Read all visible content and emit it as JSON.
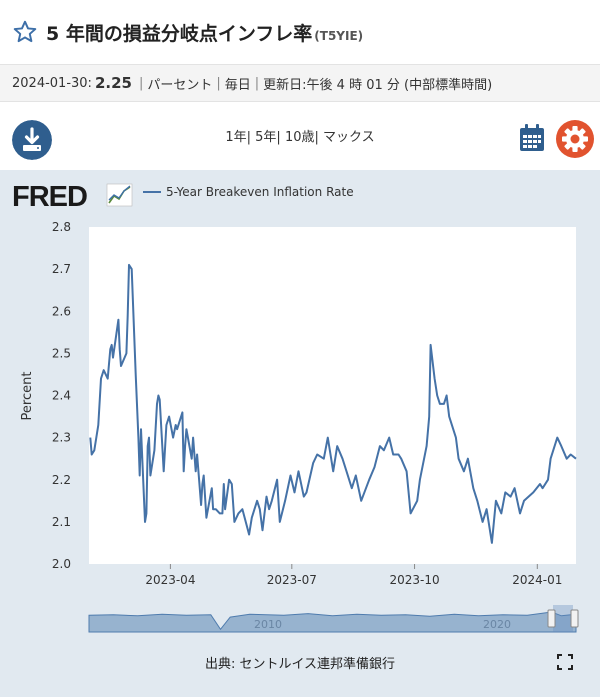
{
  "header": {
    "title": "5 年間の損益分岐点インフレ率",
    "code": "(T5YIE)"
  },
  "meta": {
    "date": "2024-01-30:",
    "value": "2.25",
    "units": "パーセント",
    "frequency": "毎日",
    "updated": "更新日:午後 4 時 01 分 (中部標準時間)"
  },
  "toolbar": {
    "range_1y": "1年",
    "range_5y": "5年",
    "range_10y": "10歳",
    "range_max": "マックス"
  },
  "chart": {
    "brand": "FRED",
    "source": "出典: セントルイス連邦準備銀行",
    "accent_color": "#4572a7",
    "panel_color": "#e1e9f0",
    "navigator_labels": [
      "2010",
      "2020"
    ]
  },
  "chart_data": {
    "type": "line",
    "series": [
      {
        "name": "5-Year Breakeven Inflation Rate",
        "color": "#4572a7",
        "points": [
          [
            "2023-01-31",
            2.3
          ],
          [
            "2023-02-01",
            2.26
          ],
          [
            "2023-02-03",
            2.27
          ],
          [
            "2023-02-06",
            2.33
          ],
          [
            "2023-02-08",
            2.44
          ],
          [
            "2023-02-10",
            2.46
          ],
          [
            "2023-02-13",
            2.44
          ],
          [
            "2023-02-15",
            2.51
          ],
          [
            "2023-02-16",
            2.52
          ],
          [
            "2023-02-17",
            2.49
          ],
          [
            "2023-02-21",
            2.58
          ],
          [
            "2023-02-22",
            2.51
          ],
          [
            "2023-02-23",
            2.47
          ],
          [
            "2023-02-27",
            2.5
          ],
          [
            "2023-02-28",
            2.59
          ],
          [
            "2023-03-01",
            2.71
          ],
          [
            "2023-03-03",
            2.7
          ],
          [
            "2023-03-06",
            2.45
          ],
          [
            "2023-03-08",
            2.3
          ],
          [
            "2023-03-09",
            2.21
          ],
          [
            "2023-03-10",
            2.32
          ],
          [
            "2023-03-13",
            2.1
          ],
          [
            "2023-03-14",
            2.12
          ],
          [
            "2023-03-15",
            2.28
          ],
          [
            "2023-03-16",
            2.3
          ],
          [
            "2023-03-17",
            2.21
          ],
          [
            "2023-03-20",
            2.27
          ],
          [
            "2023-03-22",
            2.38
          ],
          [
            "2023-03-23",
            2.4
          ],
          [
            "2023-03-24",
            2.39
          ],
          [
            "2023-03-27",
            2.22
          ],
          [
            "2023-03-29",
            2.33
          ],
          [
            "2023-03-31",
            2.35
          ],
          [
            "2023-04-03",
            2.3
          ],
          [
            "2023-04-05",
            2.33
          ],
          [
            "2023-04-06",
            2.32
          ],
          [
            "2023-04-10",
            2.36
          ],
          [
            "2023-04-11",
            2.22
          ],
          [
            "2023-04-12",
            2.28
          ],
          [
            "2023-04-13",
            2.32
          ],
          [
            "2023-04-17",
            2.25
          ],
          [
            "2023-04-18",
            2.3
          ],
          [
            "2023-04-20",
            2.22
          ],
          [
            "2023-04-21",
            2.26
          ],
          [
            "2023-04-24",
            2.14
          ],
          [
            "2023-04-25",
            2.19
          ],
          [
            "2023-04-26",
            2.21
          ],
          [
            "2023-04-28",
            2.11
          ],
          [
            "2023-05-02",
            2.18
          ],
          [
            "2023-05-03",
            2.13
          ],
          [
            "2023-05-05",
            2.13
          ],
          [
            "2023-05-08",
            2.12
          ],
          [
            "2023-05-10",
            2.12
          ],
          [
            "2023-05-11",
            2.19
          ],
          [
            "2023-05-12",
            2.13
          ],
          [
            "2023-05-15",
            2.2
          ],
          [
            "2023-05-17",
            2.19
          ],
          [
            "2023-05-19",
            2.1
          ],
          [
            "2023-05-22",
            2.12
          ],
          [
            "2023-05-25",
            2.13
          ],
          [
            "2023-05-30",
            2.07
          ],
          [
            "2023-06-01",
            2.11
          ],
          [
            "2023-06-05",
            2.15
          ],
          [
            "2023-06-07",
            2.13
          ],
          [
            "2023-06-09",
            2.08
          ],
          [
            "2023-06-12",
            2.16
          ],
          [
            "2023-06-14",
            2.13
          ],
          [
            "2023-06-16",
            2.15
          ],
          [
            "2023-06-20",
            2.2
          ],
          [
            "2023-06-22",
            2.1
          ],
          [
            "2023-06-26",
            2.15
          ],
          [
            "2023-06-30",
            2.21
          ],
          [
            "2023-07-03",
            2.17
          ],
          [
            "2023-07-06",
            2.22
          ],
          [
            "2023-07-10",
            2.16
          ],
          [
            "2023-07-12",
            2.17
          ],
          [
            "2023-07-17",
            2.24
          ],
          [
            "2023-07-20",
            2.26
          ],
          [
            "2023-07-25",
            2.25
          ],
          [
            "2023-07-28",
            2.3
          ],
          [
            "2023-08-01",
            2.22
          ],
          [
            "2023-08-04",
            2.28
          ],
          [
            "2023-08-08",
            2.25
          ],
          [
            "2023-08-11",
            2.22
          ],
          [
            "2023-08-15",
            2.18
          ],
          [
            "2023-08-18",
            2.21
          ],
          [
            "2023-08-22",
            2.15
          ],
          [
            "2023-08-28",
            2.2
          ],
          [
            "2023-09-01",
            2.23
          ],
          [
            "2023-09-05",
            2.28
          ],
          [
            "2023-09-08",
            2.27
          ],
          [
            "2023-09-12",
            2.3
          ],
          [
            "2023-09-15",
            2.26
          ],
          [
            "2023-09-19",
            2.26
          ],
          [
            "2023-09-21",
            2.25
          ],
          [
            "2023-09-25",
            2.22
          ],
          [
            "2023-09-28",
            2.12
          ],
          [
            "2023-10-03",
            2.15
          ],
          [
            "2023-10-05",
            2.2
          ],
          [
            "2023-10-10",
            2.28
          ],
          [
            "2023-10-12",
            2.35
          ],
          [
            "2023-10-13",
            2.52
          ],
          [
            "2023-10-16",
            2.44
          ],
          [
            "2023-10-18",
            2.4
          ],
          [
            "2023-10-20",
            2.38
          ],
          [
            "2023-10-23",
            2.38
          ],
          [
            "2023-10-25",
            2.4
          ],
          [
            "2023-10-27",
            2.35
          ],
          [
            "2023-11-01",
            2.3
          ],
          [
            "2023-11-03",
            2.25
          ],
          [
            "2023-11-07",
            2.22
          ],
          [
            "2023-11-10",
            2.25
          ],
          [
            "2023-11-14",
            2.18
          ],
          [
            "2023-11-17",
            2.15
          ],
          [
            "2023-11-21",
            2.1
          ],
          [
            "2023-11-24",
            2.13
          ],
          [
            "2023-11-28",
            2.05
          ],
          [
            "2023-12-01",
            2.15
          ],
          [
            "2023-12-05",
            2.12
          ],
          [
            "2023-12-08",
            2.17
          ],
          [
            "2023-12-12",
            2.16
          ],
          [
            "2023-12-15",
            2.18
          ],
          [
            "2023-12-19",
            2.12
          ],
          [
            "2023-12-22",
            2.15
          ],
          [
            "2023-12-29",
            2.17
          ],
          [
            "2024-01-03",
            2.19
          ],
          [
            "2024-01-05",
            2.18
          ],
          [
            "2024-01-09",
            2.2
          ],
          [
            "2024-01-11",
            2.25
          ],
          [
            "2024-01-16",
            2.3
          ],
          [
            "2024-01-19",
            2.28
          ],
          [
            "2024-01-23",
            2.25
          ],
          [
            "2024-01-26",
            2.26
          ],
          [
            "2024-01-30",
            2.25
          ]
        ]
      }
    ],
    "xlabel": "",
    "ylabel": "Percent",
    "ylim": [
      2.0,
      2.8
    ],
    "yticks": [
      "2.0",
      "2.1",
      "2.2",
      "2.3",
      "2.4",
      "2.5",
      "2.6",
      "2.7",
      "2.8"
    ],
    "xlim": [
      "2023-01-30",
      "2024-01-30"
    ],
    "xticks": [
      "2023-04",
      "2023-07",
      "2023-10",
      "2024-01"
    ],
    "legend_position": "top-left",
    "grid": false
  }
}
